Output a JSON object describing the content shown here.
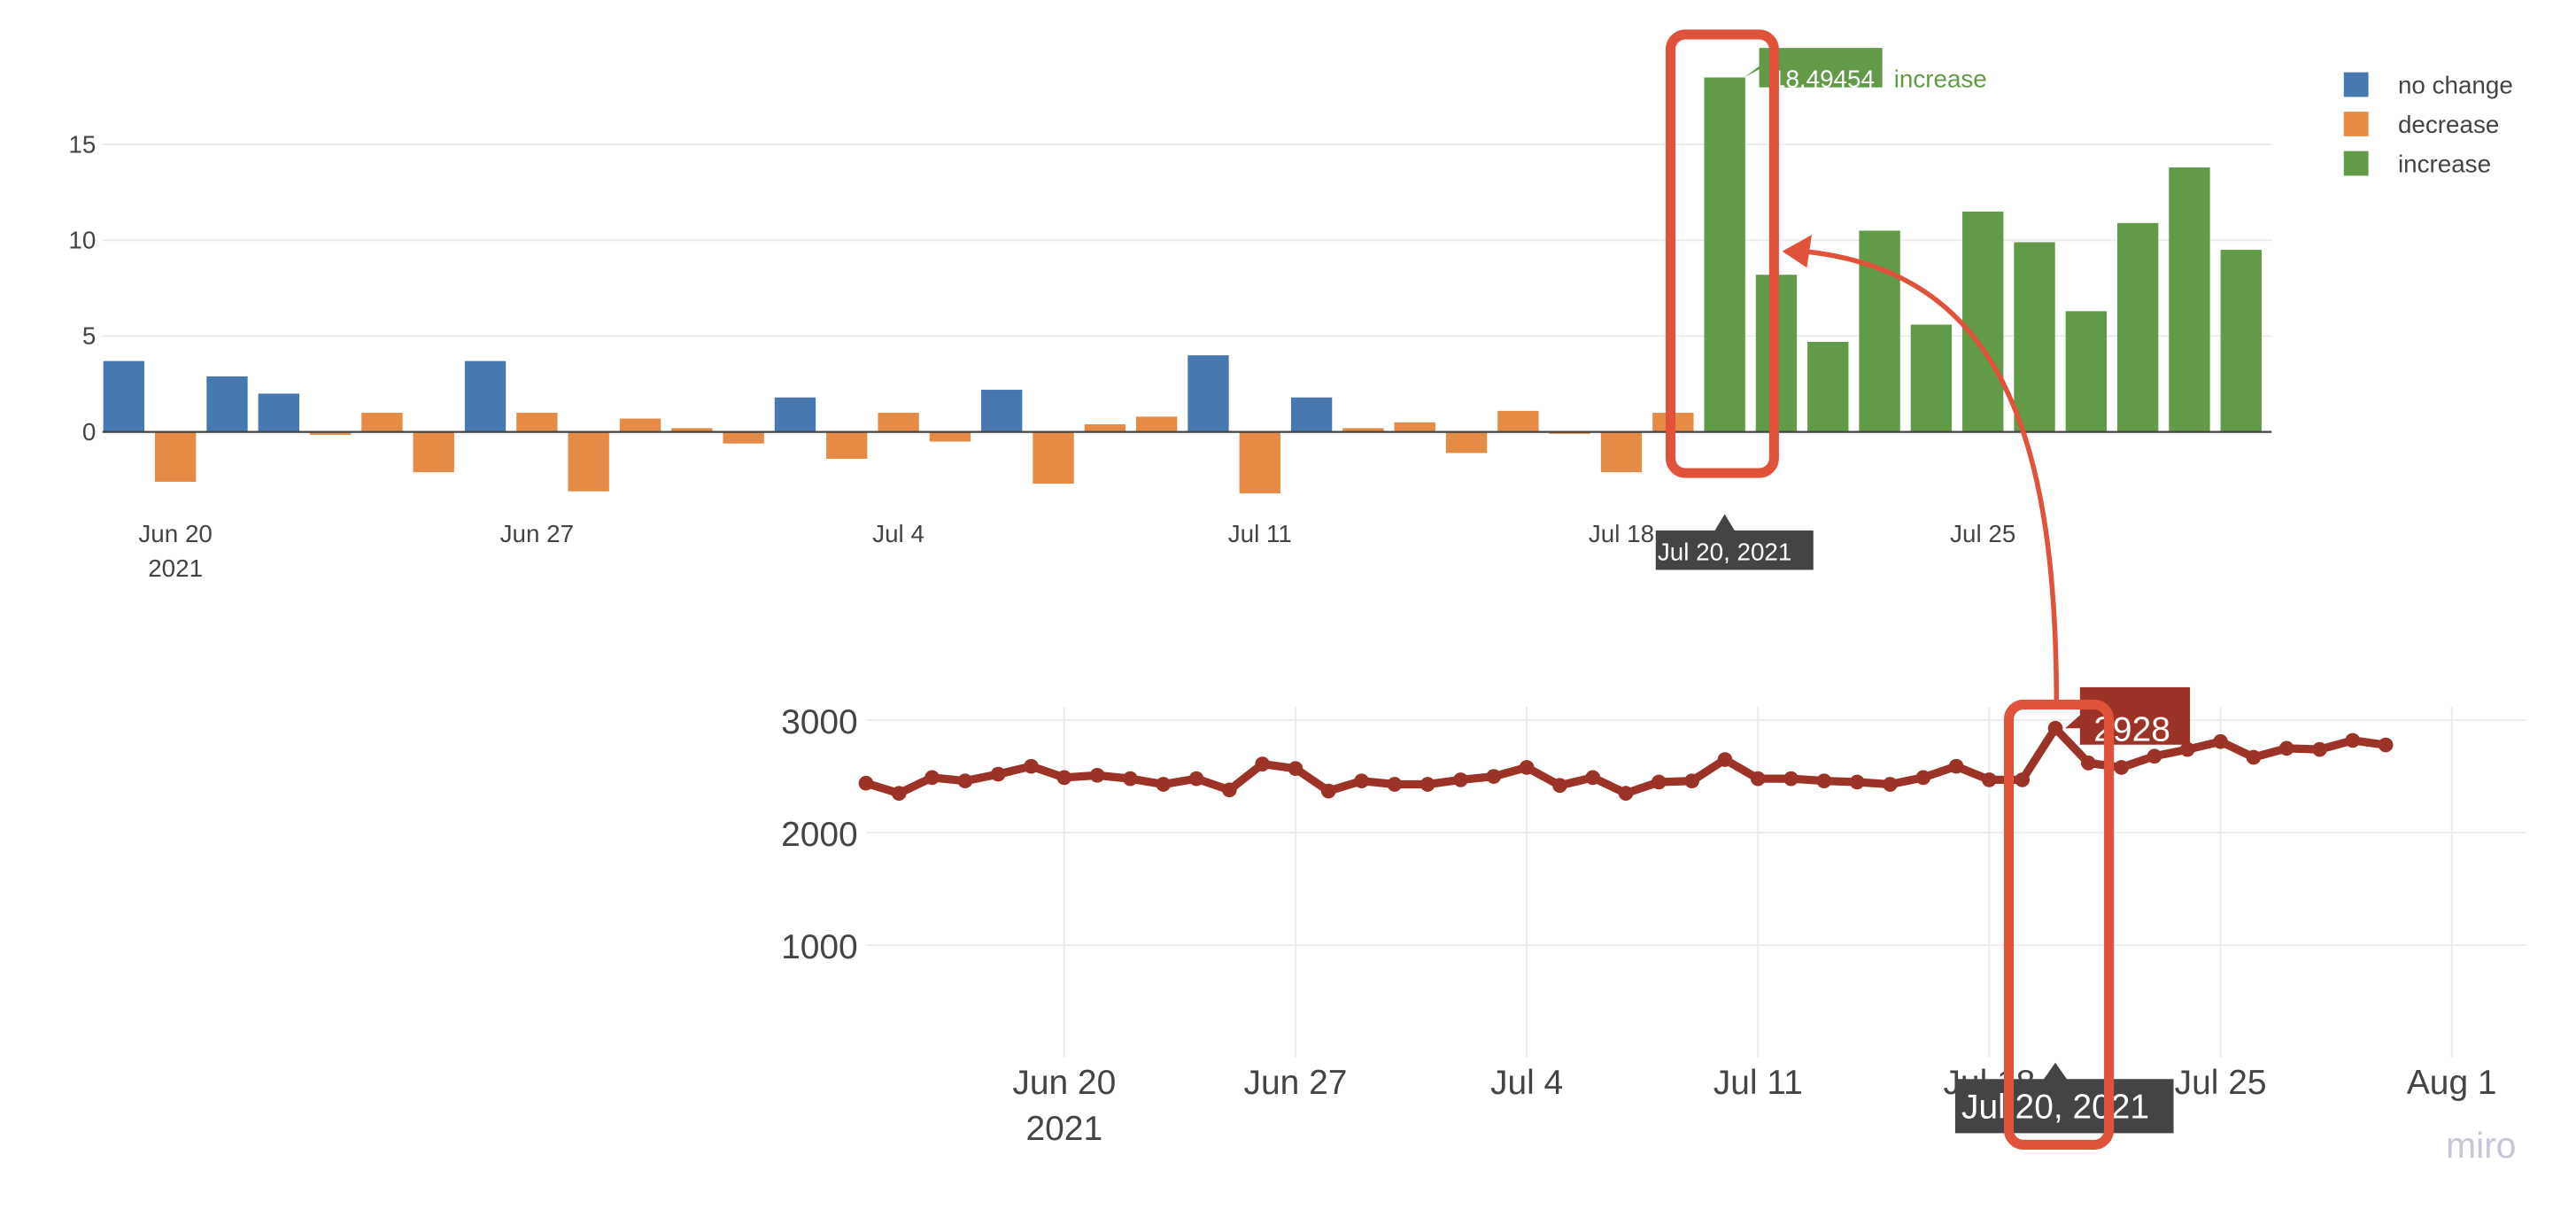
{
  "colors": {
    "no_change": "#4878b0",
    "decrease": "#e58b45",
    "increase": "#629b48",
    "line": "#9b3426",
    "annotation": "#e0533a",
    "tooltip_dark": "#444444"
  },
  "chart_data": [
    {
      "type": "bar",
      "title": "",
      "xlabel": "",
      "ylabel": "",
      "ylim": [
        -4,
        19.5
      ],
      "yticks": [
        "0",
        "5",
        "10",
        "15"
      ],
      "ytick_values": [
        0,
        5,
        10,
        15
      ],
      "xticks": [
        {
          "label": "Jun 20",
          "sub": "2021",
          "day": 1
        },
        {
          "label": "Jun 27",
          "sub": "",
          "day": 8
        },
        {
          "label": "Jul 4",
          "sub": "",
          "day": 15
        },
        {
          "label": "Jul 11",
          "sub": "",
          "day": 22
        },
        {
          "label": "Jul 18",
          "sub": "",
          "day": 29
        },
        {
          "label": "Jul 25",
          "sub": "",
          "day": 36
        }
      ],
      "start_date": "Jun 19, 2021",
      "legend": {
        "position": "top-right",
        "entries": [
          "no change",
          "decrease",
          "increase"
        ]
      },
      "categories_by_day": [
        "no change",
        "decrease",
        "no change",
        "no change",
        "decrease",
        "decrease",
        "decrease",
        "no change",
        "decrease",
        "decrease",
        "decrease",
        "decrease",
        "decrease",
        "no change",
        "decrease",
        "decrease",
        "decrease",
        "no change",
        "decrease",
        "decrease",
        "decrease",
        "no change",
        "decrease",
        "no change",
        "decrease",
        "decrease",
        "decrease",
        "decrease",
        "decrease",
        "decrease",
        "decrease",
        "increase",
        "increase",
        "increase",
        "increase",
        "increase",
        "increase",
        "increase",
        "increase",
        "increase",
        "increase",
        "increase"
      ],
      "values": [
        3.7,
        -2.6,
        2.9,
        2.0,
        -0.15,
        1.0,
        -2.1,
        3.7,
        1.0,
        -3.1,
        0.7,
        0.2,
        -0.6,
        1.8,
        -1.4,
        1.0,
        -0.5,
        2.2,
        -2.7,
        0.4,
        0.8,
        4.0,
        -3.2,
        1.8,
        0.2,
        0.5,
        -1.1,
        1.1,
        -0.1,
        -2.1,
        1.0,
        18.49454,
        8.2,
        4.7,
        10.5,
        5.6,
        11.5,
        9.9,
        6.3,
        10.9,
        13.8,
        9.5
      ],
      "hover": {
        "value": "18.49454",
        "name": "increase",
        "date": "Jul 20, 2021",
        "day": 31
      }
    },
    {
      "type": "line",
      "title": "",
      "xlabel": "",
      "ylabel": "",
      "ylim": [
        0,
        3100
      ],
      "yticks": [
        "1000",
        "2000",
        "3000"
      ],
      "ytick_values": [
        1000,
        2000,
        3000
      ],
      "xticks": [
        {
          "label": "Jun 20",
          "sub": "2021",
          "day": 6
        },
        {
          "label": "Jun 27",
          "sub": "",
          "day": 13
        },
        {
          "label": "Jul 4",
          "sub": "",
          "day": 20
        },
        {
          "label": "Jul 11",
          "sub": "",
          "day": 27
        },
        {
          "label": "Jul 18",
          "sub": "",
          "day": 34
        },
        {
          "label": "Jul 25",
          "sub": "",
          "day": 41
        },
        {
          "label": "Aug 1",
          "sub": "",
          "day": 48
        }
      ],
      "start_date": "Jun 14, 2021",
      "values": [
        2440,
        2350,
        2490,
        2460,
        2520,
        2590,
        2490,
        2510,
        2480,
        2430,
        2480,
        2380,
        2610,
        2570,
        2370,
        2460,
        2430,
        2430,
        2470,
        2500,
        2580,
        2420,
        2490,
        2350,
        2450,
        2460,
        2650,
        2480,
        2480,
        2460,
        2450,
        2430,
        2490,
        2590,
        2470,
        2470,
        2928,
        2620,
        2580,
        2680,
        2740,
        2810,
        2670,
        2750,
        2740,
        2820,
        2780
      ],
      "hover": {
        "value": "2928",
        "date": "Jul 20, 2021",
        "day": 36
      }
    }
  ],
  "watermark": "miro"
}
